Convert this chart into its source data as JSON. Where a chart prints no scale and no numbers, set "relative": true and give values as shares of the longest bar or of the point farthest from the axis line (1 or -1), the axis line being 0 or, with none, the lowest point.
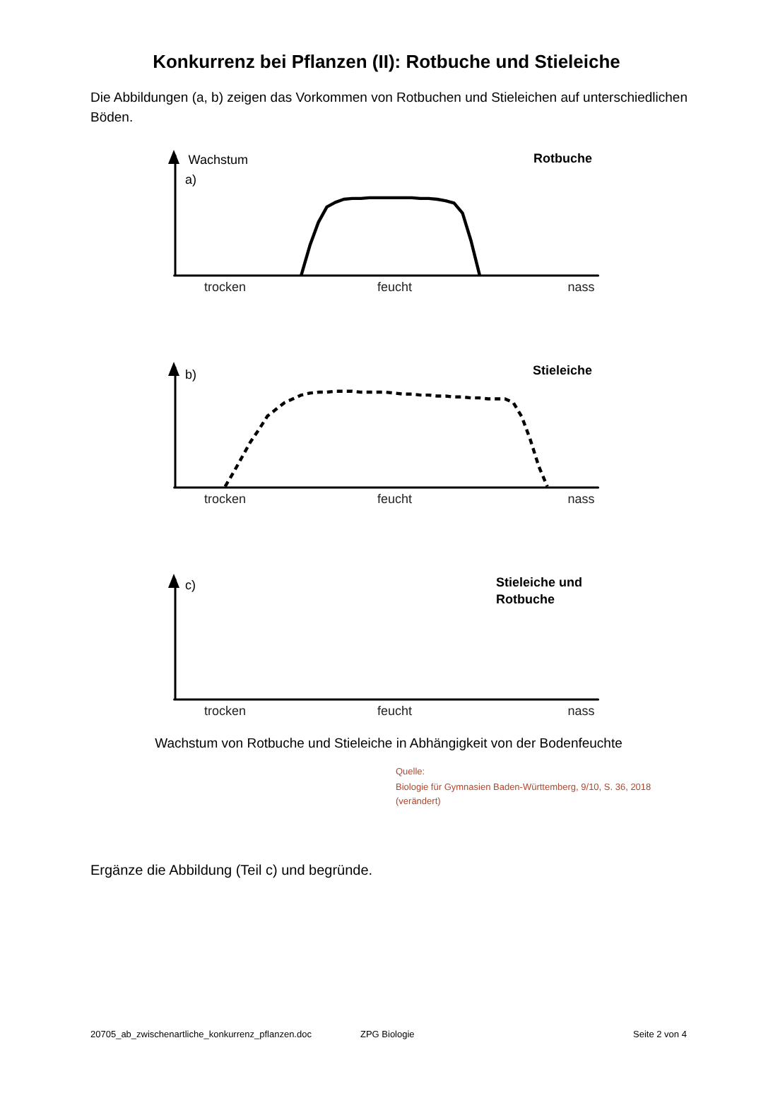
{
  "chart_data": [
    {
      "type": "line",
      "title": "Rotbuche",
      "ylabel": "Wachstum",
      "relative": true,
      "color": "#000000",
      "line_style": "solid",
      "marker": "none",
      "annotations": [
        "Konkurrenz bei Pflanzen (II): Rotbuche und Stieleiche",
        "Die Abbildungen (a, b) zeigen das Vorkommen von Rotbuchen und Stieleichen auf unterschiedlichen Böden.",
        "a)"
      ],
      "categories": [
        null,
        null,
        null,
        null,
        null,
        null,
        "trocken",
        null,
        null,
        null,
        null,
        null,
        null,
        null,
        null,
        null,
        null,
        null,
        null,
        null,
        null,
        null,
        null,
        null,
        null,
        null,
        "feucht",
        null,
        null,
        null,
        null,
        null,
        null,
        null,
        null,
        null,
        null,
        null,
        null,
        null,
        null,
        null,
        null,
        null,
        null,
        null,
        null,
        null,
        "nass",
        null,
        null
      ],
      "values": [
        null,
        null,
        null,
        null,
        null,
        null,
        null,
        null,
        null,
        null,
        null,
        null,
        null,
        null,
        null,
        0,
        0.38,
        0.68,
        0.88,
        0.94,
        0.98,
        0.99,
        0.99,
        1,
        1,
        1,
        1,
        1,
        1,
        0.99,
        0.99,
        0.98,
        0.96,
        0.93,
        0.8,
        0.44,
        0,
        null,
        null,
        null,
        null,
        null,
        null,
        null,
        null,
        null,
        null,
        null,
        null,
        null,
        null
      ]
    },
    {
      "type": "line",
      "title": "Stieleiche",
      "relative": true,
      "color": "#000000",
      "line_style": "dashed",
      "marker": "none",
      "annotations": [
        "b)"
      ],
      "categories": [
        null,
        null,
        null,
        null,
        null,
        null,
        "trocken",
        null,
        null,
        null,
        null,
        null,
        null,
        null,
        null,
        null,
        null,
        null,
        null,
        null,
        null,
        null,
        null,
        null,
        null,
        null,
        "feucht",
        null,
        null,
        null,
        null,
        null,
        null,
        null,
        null,
        null,
        null,
        null,
        null,
        null,
        null,
        null,
        null,
        null,
        null,
        null,
        null,
        null,
        "nass",
        null,
        null
      ],
      "values": [
        null,
        null,
        null,
        null,
        null,
        null,
        0,
        0.15,
        0.31,
        0.47,
        0.6,
        0.74,
        0.81,
        0.88,
        0.92,
        0.96,
        0.98,
        0.99,
        0.99,
        1,
        1,
        1,
        0.99,
        0.99,
        0.99,
        0.99,
        0.98,
        0.97,
        0.97,
        0.96,
        0.96,
        0.95,
        0.95,
        0.94,
        0.94,
        0.93,
        0.93,
        0.92,
        0.92,
        0.92,
        0.88,
        0.73,
        0.49,
        0.21,
        0,
        null,
        null,
        null,
        null,
        null,
        null
      ]
    },
    {
      "type": "other",
      "title": "Stieleiche und Rotbuche",
      "annotations": [
        "c)",
        "Wachstum von Rotbuche und Stieleiche in Abhängigkeit von der Bodenfeuchte",
        "Quelle:",
        "Biologie für Gymnasien Baden-Württemberg, 9/10, S. 36, 2018 (verändert)",
        "Ergänze die Abbildung (Teil c) und begründe.",
        "20705_ab_zwischenartliche_konkurrenz_pflanzen.doc",
        "ZPG Biologie",
        "Seite 2 von 4"
      ],
      "categories": [
        null,
        null,
        null,
        null,
        null,
        null,
        "trocken",
        null,
        null,
        null,
        null,
        null,
        null,
        null,
        null,
        null,
        null,
        null,
        null,
        null,
        null,
        null,
        null,
        null,
        null,
        null,
        "feucht",
        null,
        null,
        null,
        null,
        null,
        null,
        null,
        null,
        null,
        null,
        null,
        null,
        null,
        null,
        null,
        null,
        null,
        null,
        null,
        null,
        null,
        "nass",
        null,
        null
      ]
    }
  ]
}
